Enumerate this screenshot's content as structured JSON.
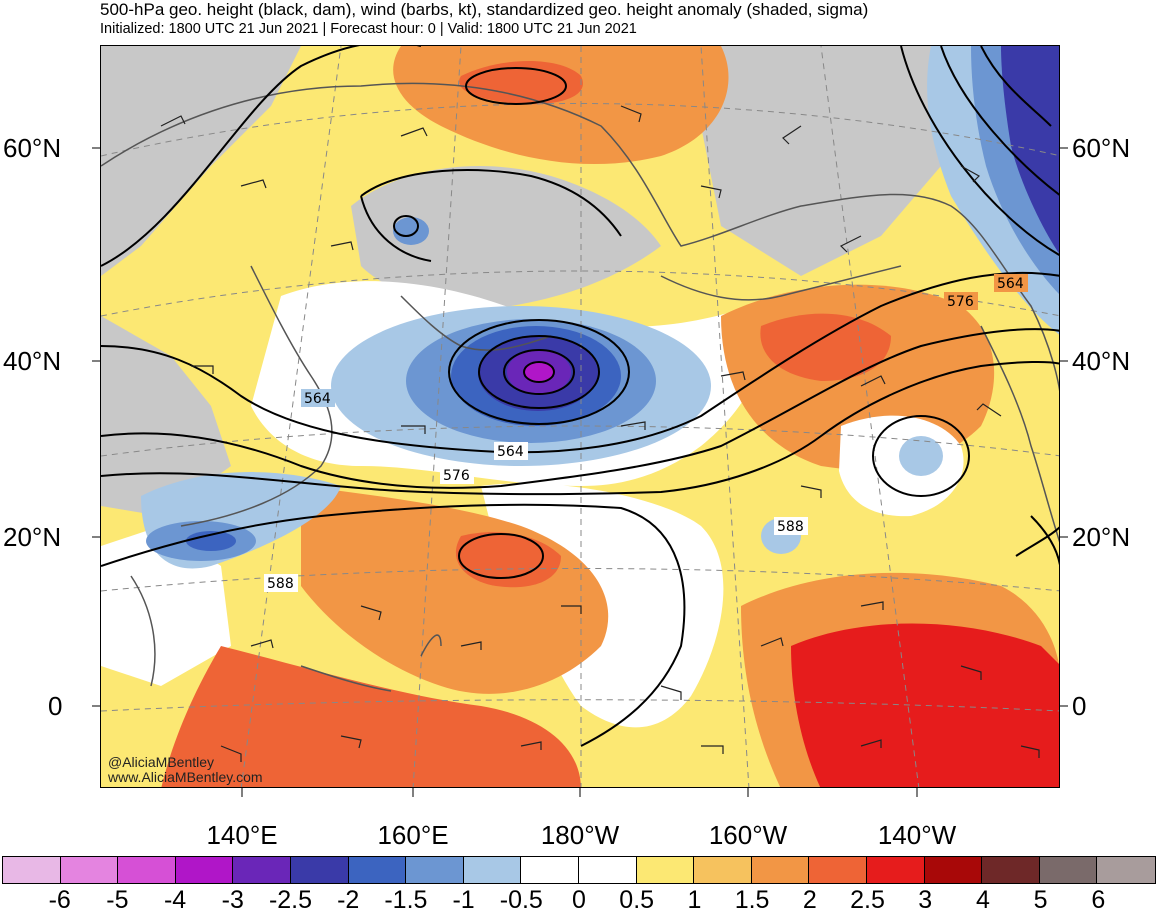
{
  "header": {
    "title": "500-hPa geo. height (black, dam), wind (barbs, kt), standardized geo. height anomaly (shaded, sigma)",
    "subtitle": "Initialized: 1800 UTC 21 Jun 2021 | Forecast hour: 0 | Valid: 1800 UTC 21 Jun 2021"
  },
  "map": {
    "lat_labels_left": [
      "60°N",
      "40°N",
      "20°N",
      "0"
    ],
    "lat_labels_right": [
      "60°N",
      "40°N",
      "20°N",
      "0"
    ],
    "lon_labels": [
      "140°E",
      "160°E",
      "180°W",
      "160°W",
      "140°W"
    ],
    "contour_labels": [
      "564",
      "564",
      "576",
      "588",
      "588",
      "564",
      "576"
    ],
    "credit": [
      "@AliciaMBentley",
      "www.AliciaMBentley.com"
    ]
  },
  "colorbar": {
    "colors": [
      "#e8b8e6",
      "#e484e0",
      "#d650d6",
      "#b016c8",
      "#6a26b8",
      "#3a3aa8",
      "#3c64c0",
      "#6c96d2",
      "#a8c8e6",
      "#ffffff",
      "#ffffff",
      "#fce873",
      "#f6c25e",
      "#f29645",
      "#ee6436",
      "#e61c1c",
      "#a80808",
      "#6e2828",
      "#7a6a6a",
      "#a89c9c"
    ],
    "ticks": [
      "-6",
      "-5",
      "-4",
      "-3",
      "-2.5",
      "-2",
      "-1.5",
      "-1",
      "-0.5",
      "0",
      "0.5",
      "1",
      "1.5",
      "2",
      "2.5",
      "3",
      "4",
      "5",
      "6"
    ]
  }
}
